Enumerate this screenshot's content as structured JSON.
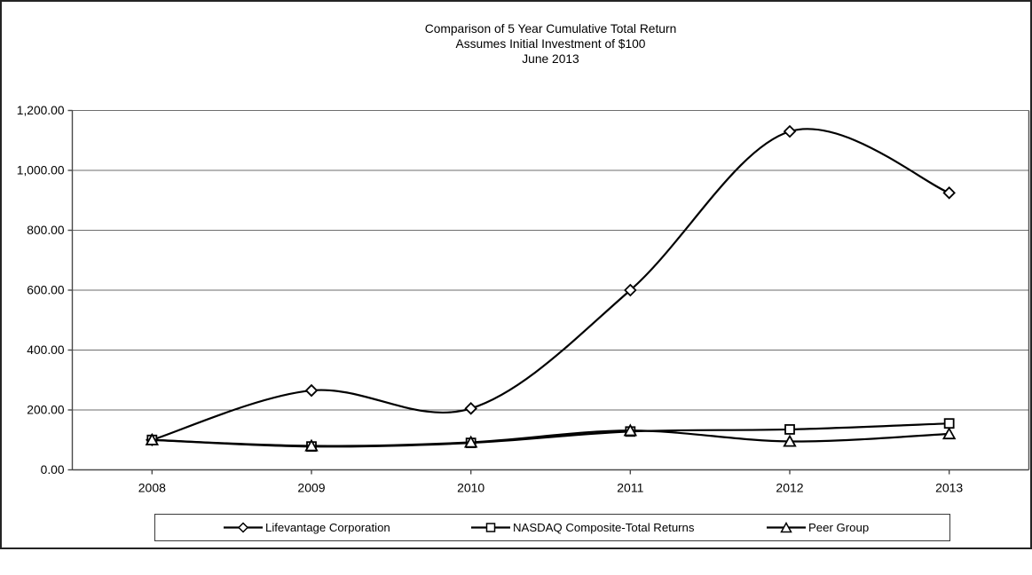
{
  "title": {
    "line1": "Comparison of 5 Year Cumulative Total Return",
    "line2": "Assumes Initial Investment of $100",
    "line3": "June 2013"
  },
  "chart_data": {
    "type": "line",
    "categories": [
      "2008",
      "2009",
      "2010",
      "2011",
      "2012",
      "2013"
    ],
    "series": [
      {
        "name": "Lifevantage Corporation",
        "marker": "diamond",
        "values": [
          100,
          265,
          205,
          600,
          1130,
          925
        ]
      },
      {
        "name": "NASDAQ Composite-Total Returns",
        "marker": "square",
        "values": [
          100,
          78,
          90,
          128,
          135,
          155
        ]
      },
      {
        "name": "Peer Group",
        "marker": "triangle",
        "values": [
          100,
          80,
          92,
          131,
          95,
          120
        ]
      }
    ],
    "ylim": [
      0,
      1200
    ],
    "ytick_step": 200,
    "ytick_labels": [
      "0.00",
      "200.00",
      "400.00",
      "600.00",
      "800.00",
      "1,000.00",
      "1,200.00"
    ],
    "xlabel": "",
    "ylabel": "",
    "grid": true,
    "smooth_lines": true,
    "legend_position": "bottom",
    "colors": {
      "series_line": "#000000",
      "marker_fill": "#ffffff",
      "grid_line": "#6e6e6e",
      "axis_line": "#4a4a4a",
      "text": "#000000",
      "frame_border": "#242424"
    }
  }
}
